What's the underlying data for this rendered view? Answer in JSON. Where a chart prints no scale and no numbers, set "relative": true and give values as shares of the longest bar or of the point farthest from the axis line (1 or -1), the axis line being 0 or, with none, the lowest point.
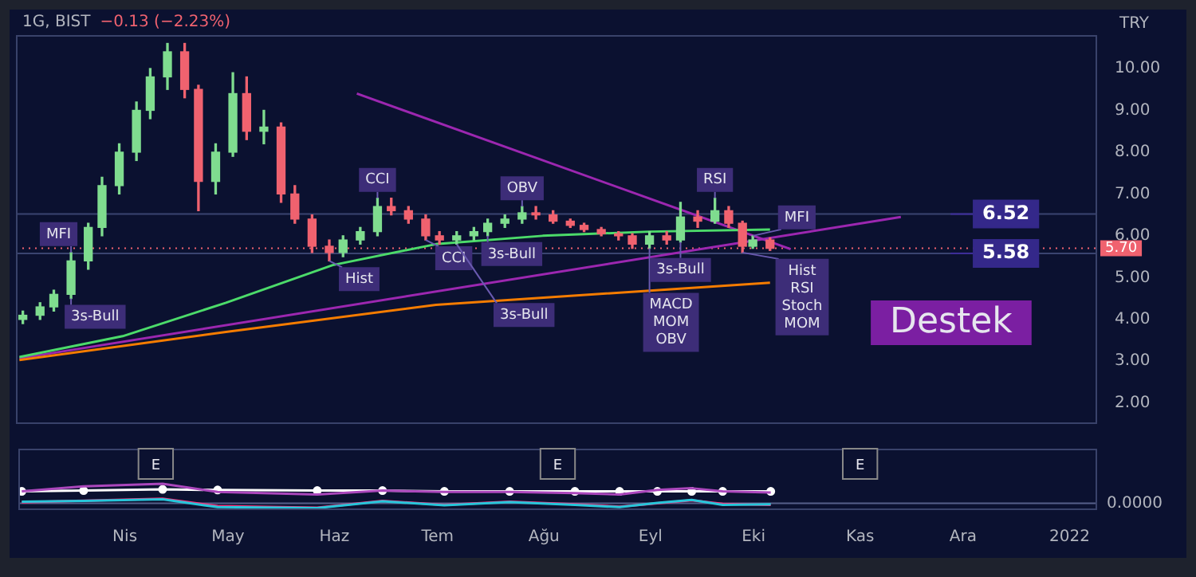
{
  "chart_data": [
    {
      "type": "candlestick",
      "title": "1G, BIST",
      "subtitle": "−0.13 (−2.23%)",
      "ylabel": "TRY",
      "x": [
        "2021-03-03",
        "2021-03-08",
        "2021-03-12",
        "2021-03-17",
        "2021-03-22",
        "2021-03-26",
        "2021-03-31",
        "2021-04-05",
        "2021-04-09",
        "2021-04-14",
        "2021-04-19",
        "2021-04-23",
        "2021-04-28",
        "2021-05-03",
        "2021-05-07",
        "2021-05-12",
        "2021-05-17",
        "2021-05-21",
        "2021-05-26",
        "2021-05-31",
        "2021-06-04",
        "2021-06-09",
        "2021-06-14",
        "2021-06-18",
        "2021-06-23",
        "2021-06-28",
        "2021-07-02",
        "2021-07-07",
        "2021-07-12",
        "2021-07-16",
        "2021-07-21",
        "2021-07-26",
        "2021-07-30",
        "2021-08-04",
        "2021-08-09",
        "2021-08-13",
        "2021-08-18",
        "2021-08-23",
        "2021-08-27",
        "2021-09-01",
        "2021-09-06",
        "2021-09-10",
        "2021-09-15",
        "2021-09-20",
        "2021-09-24",
        "2021-09-28",
        "2021-10-01",
        "2021-10-06"
      ],
      "ohlc": [
        [
          4.0,
          4.2,
          3.9,
          4.1
        ],
        [
          4.1,
          4.4,
          4.0,
          4.3
        ],
        [
          4.3,
          4.7,
          4.2,
          4.6
        ],
        [
          4.6,
          5.6,
          4.5,
          5.4
        ],
        [
          5.4,
          6.3,
          5.2,
          6.2
        ],
        [
          6.2,
          7.4,
          6.0,
          7.2
        ],
        [
          7.2,
          8.2,
          7.0,
          8.0
        ],
        [
          8.0,
          9.2,
          7.8,
          9.0
        ],
        [
          9.0,
          10.0,
          8.8,
          9.8
        ],
        [
          9.8,
          10.6,
          9.5,
          10.4
        ],
        [
          10.4,
          10.6,
          9.3,
          9.5
        ],
        [
          9.5,
          9.6,
          6.6,
          7.3
        ],
        [
          7.3,
          8.2,
          7.0,
          8.0
        ],
        [
          8.0,
          9.9,
          7.9,
          9.4
        ],
        [
          9.4,
          9.8,
          8.3,
          8.5
        ],
        [
          8.5,
          9.0,
          8.2,
          8.6
        ],
        [
          8.6,
          8.7,
          6.8,
          7.0
        ],
        [
          7.0,
          7.2,
          6.3,
          6.4
        ],
        [
          6.4,
          6.5,
          5.6,
          5.75
        ],
        [
          5.75,
          5.9,
          5.4,
          5.6
        ],
        [
          5.6,
          6.0,
          5.5,
          5.9
        ],
        [
          5.9,
          6.2,
          5.8,
          6.1
        ],
        [
          6.1,
          6.9,
          6.0,
          6.7
        ],
        [
          6.7,
          6.9,
          6.5,
          6.6
        ],
        [
          6.6,
          6.7,
          6.3,
          6.4
        ],
        [
          6.4,
          6.5,
          5.9,
          6.0
        ],
        [
          6.0,
          6.1,
          5.8,
          5.9
        ],
        [
          5.9,
          6.1,
          5.8,
          6.0
        ],
        [
          6.0,
          6.2,
          5.9,
          6.1
        ],
        [
          6.1,
          6.4,
          6.0,
          6.3
        ],
        [
          6.3,
          6.5,
          6.2,
          6.4
        ],
        [
          6.4,
          6.7,
          6.3,
          6.55
        ],
        [
          6.55,
          6.7,
          6.4,
          6.5
        ],
        [
          6.5,
          6.6,
          6.3,
          6.35
        ],
        [
          6.35,
          6.4,
          6.2,
          6.25
        ],
        [
          6.25,
          6.3,
          6.1,
          6.15
        ],
        [
          6.15,
          6.2,
          6.0,
          6.05
        ],
        [
          6.05,
          6.1,
          5.9,
          6.0
        ],
        [
          6.0,
          6.05,
          5.7,
          5.8
        ],
        [
          5.8,
          6.1,
          5.7,
          6.0
        ],
        [
          6.0,
          6.1,
          5.8,
          5.9
        ],
        [
          5.9,
          6.8,
          5.85,
          6.45
        ],
        [
          6.45,
          6.6,
          6.2,
          6.35
        ],
        [
          6.35,
          6.9,
          6.3,
          6.6
        ],
        [
          6.6,
          6.7,
          6.2,
          6.3
        ],
        [
          6.3,
          6.35,
          5.6,
          5.75
        ],
        [
          5.75,
          6.0,
          5.7,
          5.9
        ],
        [
          5.9,
          5.95,
          5.65,
          5.7
        ]
      ],
      "colors": [
        "#7fdc8f",
        "#7fdc8f",
        "#7fdc8f",
        "#7fdc8f",
        "#7fdc8f",
        "#7fdc8f",
        "#7fdc8f",
        "#7fdc8f",
        "#7fdc8f",
        "#7fdc8f",
        "#f0626f",
        "#f0626f",
        "#7fdc8f",
        "#7fdc8f",
        "#f0626f",
        "#7fdc8f",
        "#f0626f",
        "#f0626f",
        "#f0626f",
        "#f0626f",
        "#7fdc8f",
        "#7fdc8f",
        "#7fdc8f",
        "#f0626f",
        "#f0626f",
        "#f0626f",
        "#f0626f",
        "#7fdc8f",
        "#7fdc8f",
        "#7fdc8f",
        "#7fdc8f",
        "#7fdc8f",
        "#f0626f",
        "#f0626f",
        "#f0626f",
        "#f0626f",
        "#f0626f",
        "#f0626f",
        "#f0626f",
        "#7fdc8f",
        "#f0626f",
        "#7fdc8f",
        "#f0626f",
        "#7fdc8f",
        "#f0626f",
        "#f0626f",
        "#7fdc8f",
        "#f0626f"
      ],
      "series": [
        {
          "type": "line",
          "color": "#f57c00",
          "x": [
            "2021-03-02",
            "2021-05-01",
            "2021-07-01",
            "2021-10-06"
          ],
          "values": [
            3.03,
            3.7,
            4.35,
            4.88
          ]
        },
        {
          "type": "line",
          "color": "#4cdb6a",
          "x": [
            "2021-03-02",
            "2021-04-01",
            "2021-05-01",
            "2021-06-01",
            "2021-07-01",
            "2021-08-01",
            "2021-09-01",
            "2021-10-06"
          ],
          "values": [
            3.1,
            3.6,
            4.4,
            5.3,
            5.8,
            6.0,
            6.1,
            6.15
          ]
        },
        {
          "type": "line",
          "color": "#9c27b0",
          "x": [
            "2021-03-02",
            "2021-11-13"
          ],
          "values": [
            3.07,
            6.45
          ]
        },
        {
          "type": "line",
          "color": "#9c27b0",
          "x": [
            "2021-06-08",
            "2021-10-12"
          ],
          "values": [
            9.4,
            5.68
          ]
        }
      ],
      "xlim": [
        "2021-03-01",
        "2022-01-09"
      ],
      "ylim": [
        1.5,
        10.8
      ],
      "yticks": [
        {
          "value": 2,
          "label": "2.00"
        },
        {
          "value": 3,
          "label": "3.00"
        },
        {
          "value": 4,
          "label": "4.00"
        },
        {
          "value": 5,
          "label": "5.00"
        },
        {
          "value": 6,
          "label": "6.00"
        },
        {
          "value": 7,
          "label": "7.00"
        },
        {
          "value": 8,
          "label": "8.00"
        },
        {
          "value": 9,
          "label": "9.00"
        },
        {
          "value": 10,
          "label": "10.00"
        }
      ],
      "tick_labels": "y",
      "ref_lines": [
        {
          "axis": "y",
          "value": 5.7,
          "label": "5.70",
          "color": "#f0626f",
          "line_style": "dotted"
        },
        {
          "axis": "y",
          "value": 6.52,
          "label": "6.52",
          "color": "#3a4470"
        },
        {
          "axis": "y",
          "value": 5.58,
          "label": "5.58",
          "color": "#3a4470"
        }
      ],
      "annotations": [
        {
          "text": "MFI",
          "x": "2021-03-17",
          "y": 5.6
        },
        {
          "text": "3s-Bull",
          "x": "2021-03-17",
          "y": 4.5
        },
        {
          "text": "CCI",
          "x": "2021-06-14",
          "y": 6.9
        },
        {
          "text": "Hist",
          "x": "2021-05-31",
          "y": 5.4
        },
        {
          "text": "CCI",
          "x": "2021-06-28",
          "y": 5.9
        },
        {
          "text": "3s-Bull",
          "x": "2021-07-07",
          "y": 5.8
        },
        {
          "text": "3s-Bull",
          "x": "2021-07-16",
          "y": 6.0
        },
        {
          "text": "OBV",
          "x": "2021-07-26",
          "y": 6.7
        },
        {
          "text": "MACD MOM OBV",
          "x": "2021-09-01",
          "y": 5.7
        },
        {
          "text": "RSI",
          "x": "2021-09-20",
          "y": 6.9
        },
        {
          "text": "3s-Bull",
          "x": "2021-09-10",
          "y": 5.85
        },
        {
          "text": "MFI",
          "x": "2021-10-01",
          "y": 6.0
        },
        {
          "text": "Hist RSI Stoch MOM",
          "x": "2021-09-28",
          "y": 5.6
        },
        "Destek"
      ]
    },
    {
      "type": "line",
      "relative": true,
      "x": [
        "2021-03-02",
        "2021-03-20",
        "2021-04-12",
        "2021-04-28",
        "2021-05-27",
        "2021-06-15",
        "2021-07-03",
        "2021-07-22",
        "2021-08-10",
        "2021-08-23",
        "2021-09-03",
        "2021-09-13",
        "2021-09-22",
        "2021-10-06"
      ],
      "series": [
        {
          "color": "#ab47bc",
          "values": [
            0.61,
            0.87,
            1,
            0.58,
            0.45,
            0.65,
            0.58,
            0.58,
            0.52,
            0.45,
            0.68,
            0.77,
            0.61,
            0.55
          ]
        },
        {
          "color": "#ffffff",
          "values": [
            0.61,
            0.65,
            0.71,
            0.68,
            0.65,
            0.65,
            0.61,
            0.61,
            0.61,
            0.61,
            0.61,
            0.61,
            0.61,
            0.61
          ],
          "marker": "circle"
        },
        {
          "color": "#26c6da",
          "values": [
            0.08,
            0.12,
            0.2,
            -0.2,
            -0.25,
            0.1,
            -0.1,
            0.06,
            -0.08,
            -0.2,
            0.02,
            0.17,
            -0.08,
            -0.05
          ]
        },
        {
          "color": "#ff2e7a",
          "values": [
            0.05,
            0.13,
            0.23,
            -0.15,
            -0.23,
            0.12,
            -0.08,
            0.08,
            -0.05,
            -0.18,
            0,
            0.15,
            -0.03,
            -0.08
          ]
        }
      ],
      "xlim": [
        "2021-03-01",
        "2022-01-09"
      ],
      "xticks": [
        {
          "value": "2021-04-01",
          "label": "Nis"
        },
        {
          "value": "2021-05-01",
          "label": "May"
        },
        {
          "value": "2021-06-01",
          "label": "Haz"
        },
        {
          "value": "2021-07-01",
          "label": "Tem"
        },
        {
          "value": "2021-08-01",
          "label": "Ağu"
        },
        {
          "value": "2021-09-01",
          "label": "Eyl"
        },
        {
          "value": "2021-10-01",
          "label": "Eki"
        },
        {
          "value": "2021-11-01",
          "label": "Kas"
        },
        {
          "value": "2021-12-01",
          "label": "Ara"
        },
        {
          "value": "2022-01-01",
          "label": "2022"
        }
      ],
      "tick_labels": "x",
      "ref_lines": [
        {
          "axis": "y",
          "value": 0,
          "label": "0.0000",
          "color": "#56608a"
        }
      ],
      "annotations": [
        {
          "text": "E",
          "x": "2021-04-10"
        },
        {
          "text": "E",
          "x": "2021-08-05"
        },
        {
          "text": "E",
          "x": "2021-11-01"
        }
      ]
    }
  ]
}
